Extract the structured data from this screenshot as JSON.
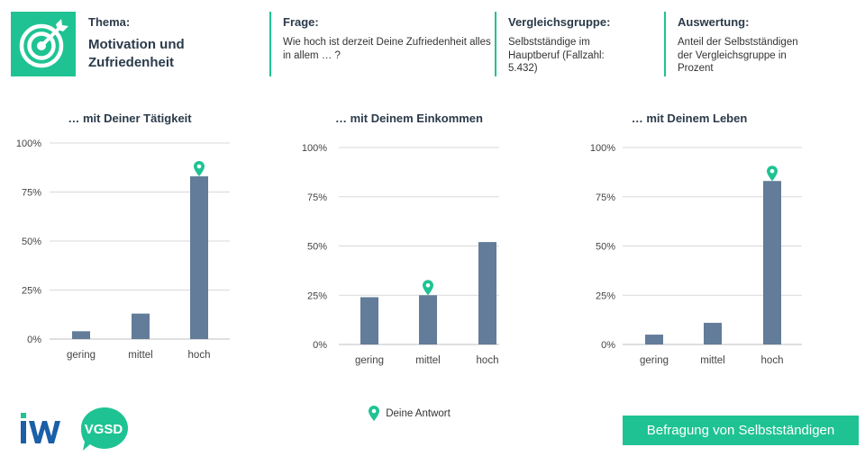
{
  "header": {
    "thema_label": "Thema:",
    "thema_value": "Motivation und Zufriedenheit",
    "frage_label": "Frage:",
    "frage_value": "Wie hoch ist derzeit Deine Zufriedenheit alles in allem … ?",
    "vergleich_label": "Vergleichsgruppe:",
    "vergleich_value": "Selbstständige im Hauptberuf (Fallzahl: 5.432)",
    "auswertung_label": "Auswertung:",
    "auswertung_value": "Anteil der Selbstständigen der Vergleichsgruppe in Prozent"
  },
  "colors": {
    "accent": "#1fc393",
    "bar": "#627c9a",
    "iw_blue": "#1a5fa8",
    "vgsd_green": "#1fc393"
  },
  "legend": {
    "label": "Deine Antwort",
    "icon": "map-pin-icon"
  },
  "footer": {
    "label": "Befragung von Selbstständigen"
  },
  "logos": {
    "iw": "IW",
    "vgsd": "VGSD"
  },
  "chart_data": [
    {
      "type": "bar",
      "title": "… mit Deiner Tätigkeit",
      "categories": [
        "gering",
        "mittel",
        "hoch"
      ],
      "values": [
        4,
        13,
        83
      ],
      "marker_index": 2,
      "ylim": [
        0,
        100
      ],
      "yticks": [
        "0%",
        "25%",
        "50%",
        "75%",
        "100%"
      ],
      "grid": true
    },
    {
      "type": "bar",
      "title": "… mit Deinem Einkommen",
      "categories": [
        "gering",
        "mittel",
        "hoch"
      ],
      "values": [
        24,
        25,
        52
      ],
      "marker_index": 1,
      "ylim": [
        0,
        100
      ],
      "yticks": [
        "0%",
        "25%",
        "50%",
        "75%",
        "100%"
      ],
      "grid": true
    },
    {
      "type": "bar",
      "title": "… mit Deinem Leben",
      "categories": [
        "gering",
        "mittel",
        "hoch"
      ],
      "values": [
        5,
        11,
        83
      ],
      "marker_index": 2,
      "ylim": [
        0,
        100
      ],
      "yticks": [
        "0%",
        "25%",
        "50%",
        "75%",
        "100%"
      ],
      "grid": true
    }
  ]
}
